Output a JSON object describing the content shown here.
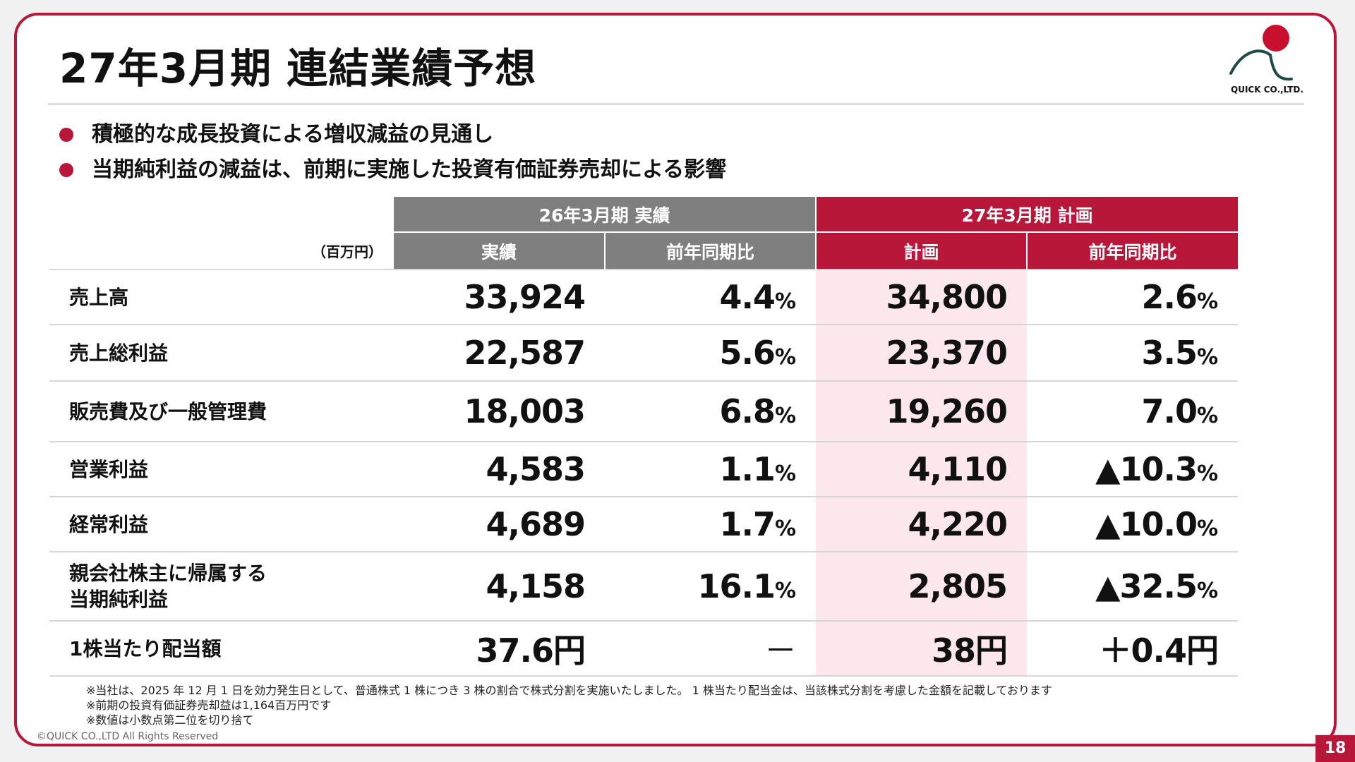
{
  "slide": {
    "title": "27年3月期 連結業績予想",
    "bullets": [
      "積極的な成長投資による増収減益の見通し",
      "当期純利益の減益は、前期に実施した投資有価証券売却による影響"
    ],
    "logo_text": "QUICK CO.,LTD.",
    "page_number": "18",
    "copyright": "©QUICK CO.,LTD All Rights Reserved"
  },
  "table": {
    "unit": "（百万円）",
    "group_actual": "26年3月期 実績",
    "group_plan": "27年3月期  計画",
    "col_actual": "実績",
    "col_actual_yoy": "前年同期比",
    "col_plan": "計画",
    "col_plan_yoy": "前年同期比",
    "rows": [
      {
        "label": "売上高",
        "actual": "33,924",
        "actual_yoy": "4.4",
        "actual_yoy_unit": "%",
        "plan": "34,800",
        "plan_yoy": "2.6",
        "plan_yoy_unit": "%"
      },
      {
        "label": "売上総利益",
        "actual": "22,587",
        "actual_yoy": "5.6",
        "actual_yoy_unit": "%",
        "plan": "23,370",
        "plan_yoy": "3.5",
        "plan_yoy_unit": "%"
      },
      {
        "label": "販売費及び一般管理費",
        "actual": "18,003",
        "actual_yoy": "6.8",
        "actual_yoy_unit": "%",
        "plan": "19,260",
        "plan_yoy": "7.0",
        "plan_yoy_unit": "%"
      },
      {
        "label": "営業利益",
        "actual": "4,583",
        "actual_yoy": "1.1",
        "actual_yoy_unit": "%",
        "plan": "4,110",
        "plan_yoy": "▲10.3",
        "plan_yoy_unit": "%"
      },
      {
        "label": "経常利益",
        "actual": "4,689",
        "actual_yoy": "1.7",
        "actual_yoy_unit": "%",
        "plan": "4,220",
        "plan_yoy": "▲10.0",
        "plan_yoy_unit": "%"
      },
      {
        "label_line1": "親会社株主に帰属する",
        "label_line2": "当期純利益",
        "actual": "4,158",
        "actual_yoy": "16.1",
        "actual_yoy_unit": "%",
        "plan": "2,805",
        "plan_yoy": "▲32.5",
        "plan_yoy_unit": "%"
      },
      {
        "label": "1株当たり配当額",
        "actual": "37.6円",
        "actual_yoy": "－",
        "plan": "38円",
        "plan_yoy": "＋0.4円"
      }
    ]
  },
  "notes": [
    "※当社は、2025 年 12 月 1 日を効力発生日として、普通株式 1 株につき 3 株の割合で株式分割を実施いたしました。 1 株当たり配当金は、当該株式分割を考慮した金額を記載しております",
    "※前期の投資有価証券売却益は1,164百万円です",
    "※数値は小数点第二位を切り捨て"
  ],
  "colors": {
    "accent": "#b9173a",
    "header_gray": "#7f7f7f",
    "plan_highlight": "#fce8ec"
  }
}
